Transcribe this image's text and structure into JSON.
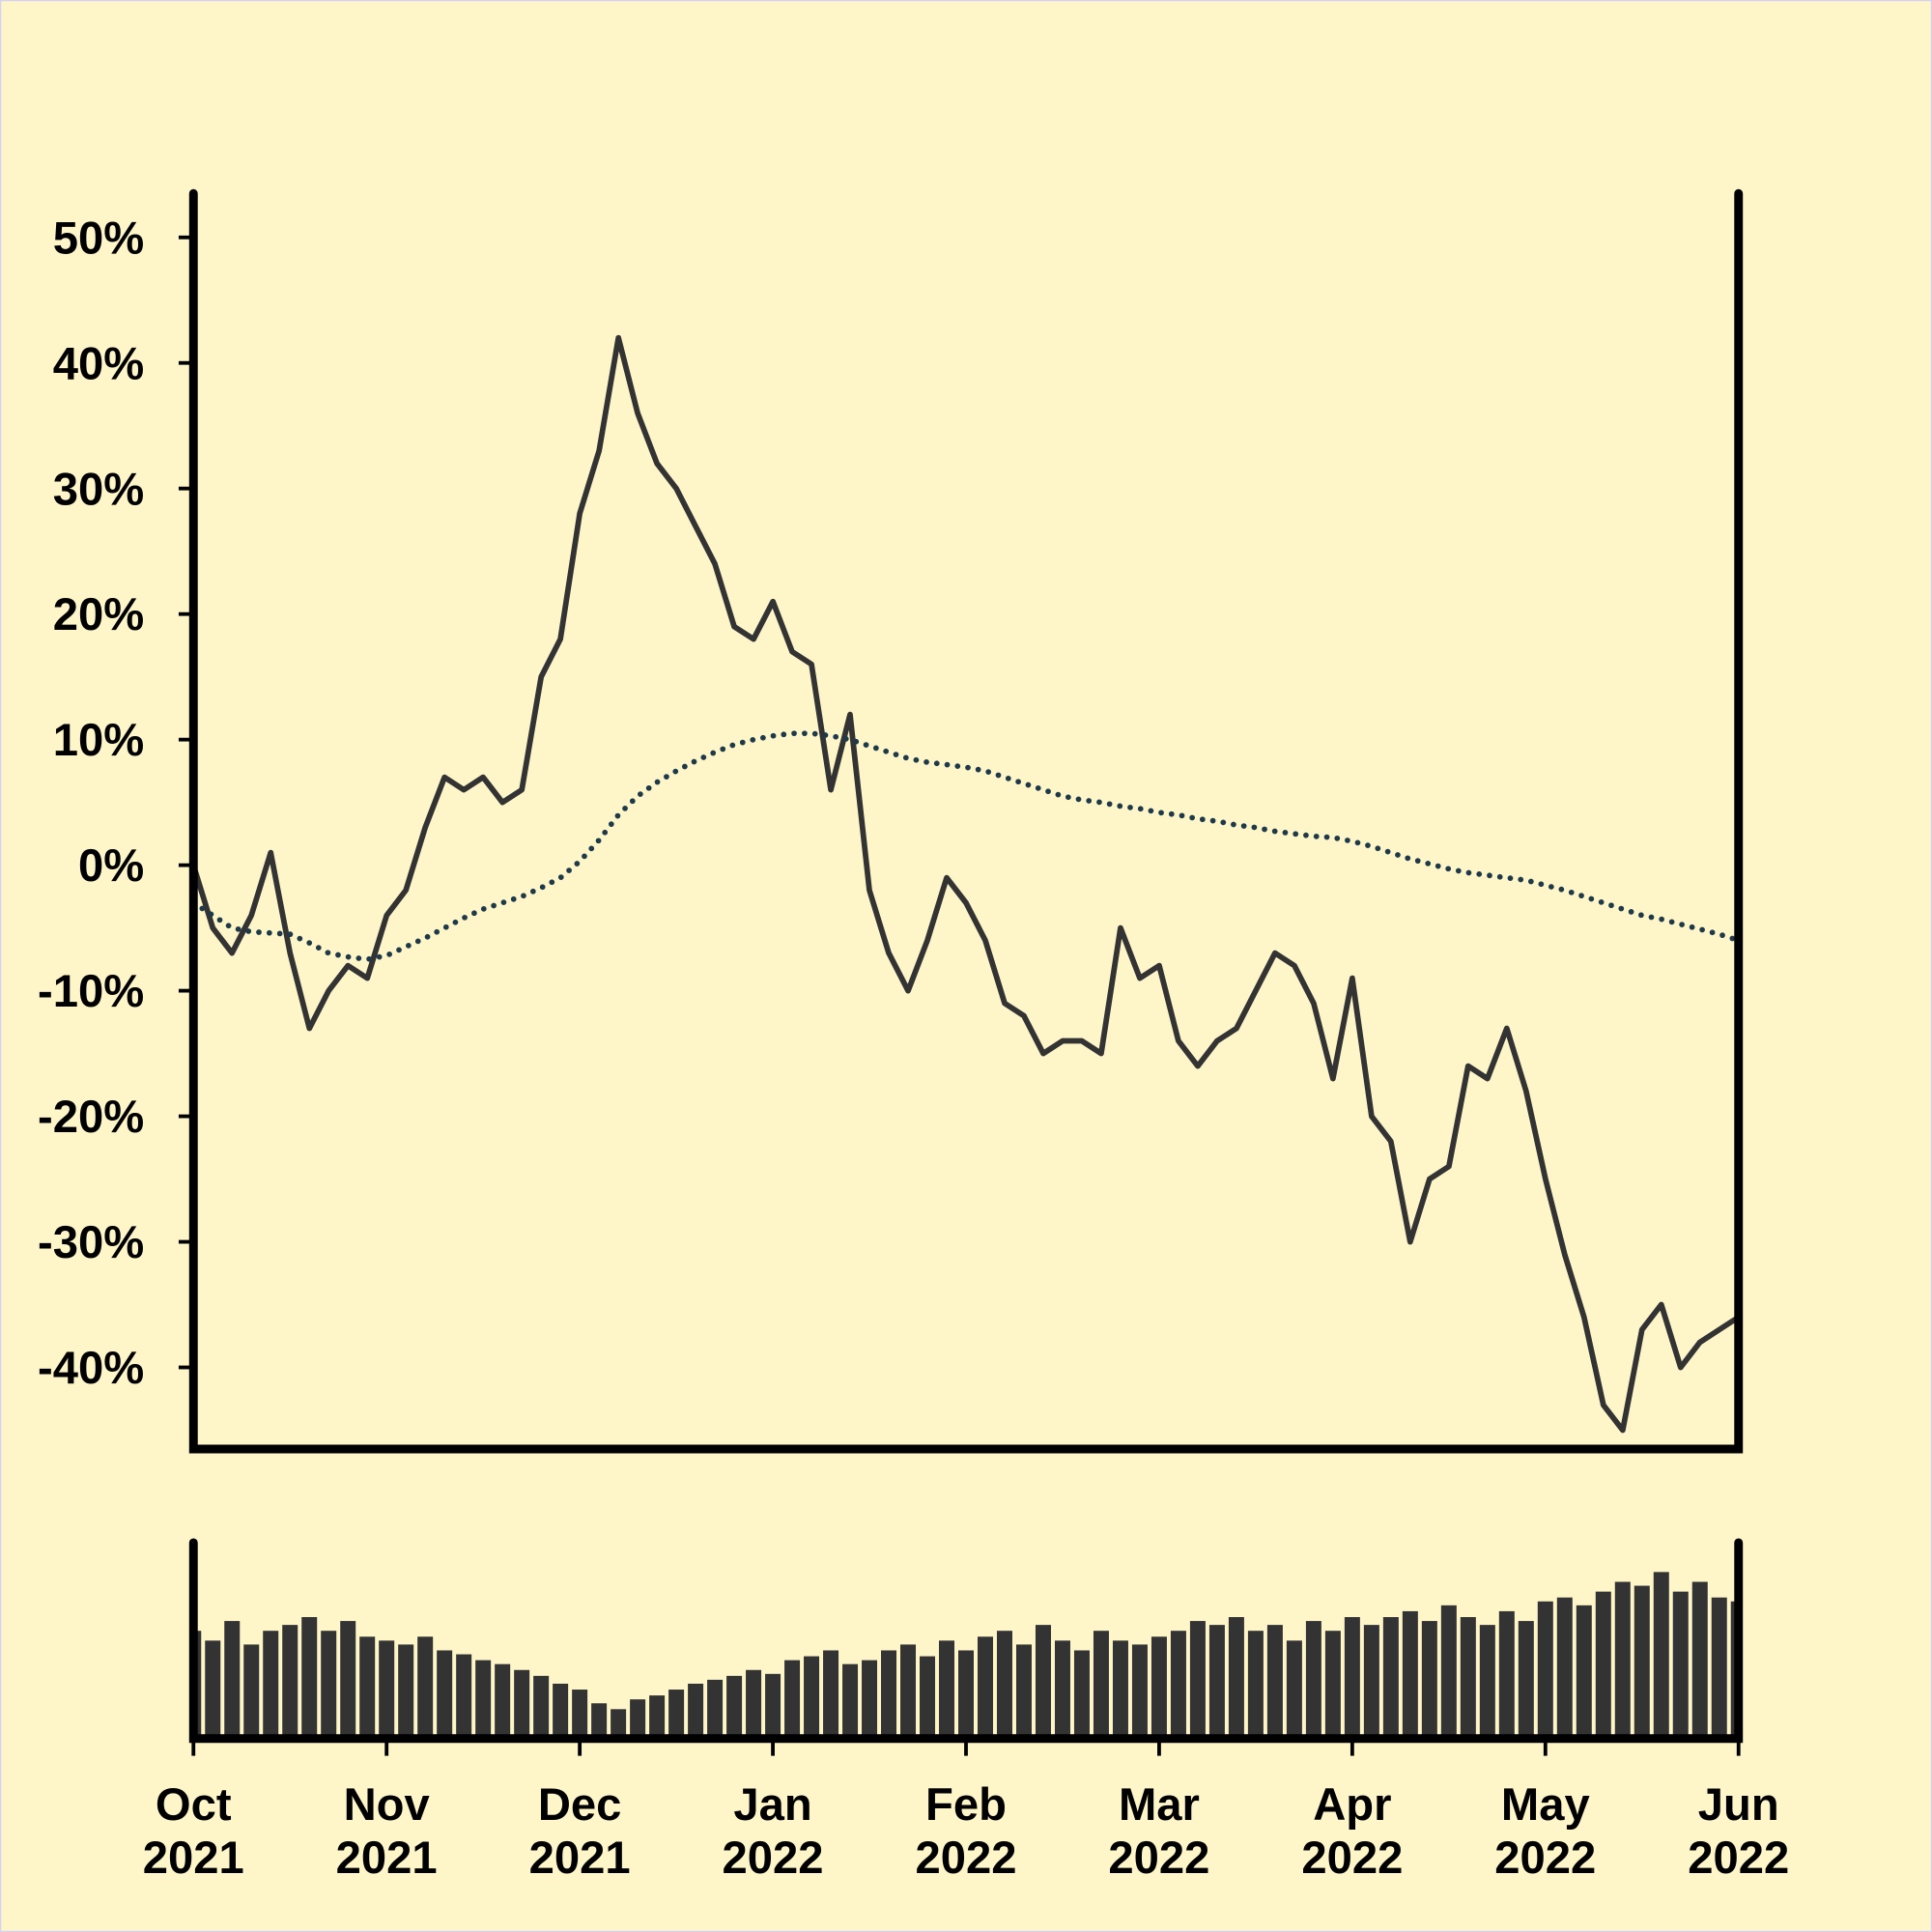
{
  "chart_data": [
    {
      "type": "line",
      "x": [
        0,
        0.1,
        0.2,
        0.3,
        0.4,
        0.5,
        0.6,
        0.7,
        0.8,
        0.9,
        1.0,
        1.1,
        1.2,
        1.3,
        1.4,
        1.5,
        1.6,
        1.7,
        1.8,
        1.9,
        2.0,
        2.1,
        2.2,
        2.3,
        2.4,
        2.5,
        2.6,
        2.7,
        2.8,
        2.9,
        3.0,
        3.1,
        3.2,
        3.3,
        3.4,
        3.5,
        3.6,
        3.7,
        3.8,
        3.9,
        4.0,
        4.1,
        4.2,
        4.3,
        4.4,
        4.5,
        4.6,
        4.7,
        4.8,
        4.9,
        5.0,
        5.1,
        5.2,
        5.3,
        5.4,
        5.5,
        5.6,
        5.7,
        5.8,
        5.9,
        6.0,
        6.1,
        6.2,
        6.3,
        6.4,
        6.5,
        6.6,
        6.7,
        6.8,
        6.9,
        7.0,
        7.1,
        7.2,
        7.3,
        7.4,
        7.5,
        7.6,
        7.7,
        7.8,
        7.9,
        8.0
      ],
      "series": [
        {
          "color": "#333333",
          "style": "solid",
          "values": [
            0,
            -5,
            -7,
            -4,
            1,
            -7,
            -13,
            -10,
            -8,
            -9,
            -4,
            -2,
            3,
            7,
            6,
            7,
            5,
            6,
            15,
            18,
            28,
            33,
            42,
            36,
            32,
            30,
            27,
            24,
            19,
            18,
            21,
            17,
            16,
            6,
            12,
            -2,
            -7,
            -10,
            -6,
            -1,
            -3,
            -6,
            -11,
            -12,
            -15,
            -14,
            -14,
            -15,
            -5,
            -9,
            -8,
            -14,
            -16,
            -14,
            -13,
            -10,
            -7,
            -8,
            -11,
            -17,
            -9,
            -20,
            -22,
            -30,
            -25,
            -24,
            -16,
            -17,
            -13,
            -18,
            -25,
            -31,
            -36,
            -43,
            -45,
            -37,
            -35,
            -40,
            -38,
            -37,
            -36
          ]
        },
        {
          "color": "#1e3a4a",
          "style": "dotted",
          "values": [
            -3,
            -4,
            -5,
            -5.3,
            -5.4,
            -5.5,
            -6.2,
            -7,
            -7.3,
            -7.5,
            -7.2,
            -6.5,
            -5.8,
            -5,
            -4.2,
            -3.5,
            -3,
            -2.5,
            -1.8,
            -1,
            0.3,
            2,
            4,
            5.5,
            6.6,
            7.5,
            8.3,
            9,
            9.6,
            10,
            10.3,
            10.5,
            10.5,
            10.3,
            10,
            9.5,
            9,
            8.5,
            8.2,
            8,
            7.8,
            7.5,
            7,
            6.5,
            6,
            5.5,
            5.2,
            5,
            4.7,
            4.5,
            4.2,
            4,
            3.7,
            3.5,
            3.2,
            3,
            2.7,
            2.5,
            2.3,
            2.2,
            1.9,
            1.5,
            1,
            0.5,
            0.1,
            -0.3,
            -0.6,
            -0.8,
            -1,
            -1.2,
            -1.6,
            -2,
            -2.5,
            -3,
            -3.5,
            -4,
            -4.3,
            -4.7,
            -5.1,
            -5.5,
            -6
          ]
        }
      ],
      "xlim": [
        0,
        8
      ],
      "ylim": [
        -46.5,
        53.5
      ],
      "yticks": [
        {
          "value": 50,
          "label": "50%"
        },
        {
          "value": 40,
          "label": "40%"
        },
        {
          "value": 30,
          "label": "30%"
        },
        {
          "value": 20,
          "label": "20%"
        },
        {
          "value": 10,
          "label": "10%"
        },
        {
          "value": 0,
          "label": "0%"
        },
        {
          "value": -10,
          "label": "-10%"
        },
        {
          "value": -20,
          "label": "-20%"
        },
        {
          "value": -30,
          "label": "-30%"
        },
        {
          "value": -40,
          "label": "-40%"
        }
      ]
    },
    {
      "type": "bar",
      "color": "#333333",
      "x": [
        0,
        0.1,
        0.2,
        0.3,
        0.4,
        0.5,
        0.6,
        0.7,
        0.8,
        0.9,
        1.0,
        1.1,
        1.2,
        1.3,
        1.4,
        1.5,
        1.6,
        1.7,
        1.8,
        1.9,
        2.0,
        2.1,
        2.2,
        2.3,
        2.4,
        2.5,
        2.6,
        2.7,
        2.8,
        2.9,
        3.0,
        3.1,
        3.2,
        3.3,
        3.4,
        3.5,
        3.6,
        3.7,
        3.8,
        3.9,
        4.0,
        4.1,
        4.2,
        4.3,
        4.4,
        4.5,
        4.6,
        4.7,
        4.8,
        4.9,
        5.0,
        5.1,
        5.2,
        5.3,
        5.4,
        5.5,
        5.6,
        5.7,
        5.8,
        5.9,
        6.0,
        6.1,
        6.2,
        6.3,
        6.4,
        6.5,
        6.6,
        6.7,
        6.8,
        6.9,
        7.0,
        7.1,
        7.2,
        7.3,
        7.4,
        7.5,
        7.6,
        7.7,
        7.8,
        7.9,
        8.0
      ],
      "values": [
        55,
        50,
        60,
        48,
        55,
        58,
        62,
        55,
        60,
        52,
        50,
        48,
        52,
        45,
        43,
        40,
        38,
        35,
        32,
        28,
        25,
        18,
        15,
        20,
        22,
        25,
        28,
        30,
        32,
        35,
        33,
        40,
        42,
        45,
        38,
        40,
        45,
        48,
        42,
        50,
        45,
        52,
        55,
        48,
        58,
        50,
        45,
        55,
        50,
        48,
        52,
        55,
        60,
        58,
        62,
        55,
        58,
        50,
        60,
        55,
        62,
        58,
        62,
        65,
        60,
        68,
        62,
        58,
        65,
        60,
        70,
        72,
        68,
        75,
        80,
        78,
        85,
        75,
        80,
        72,
        70
      ],
      "xlim": [
        0,
        8
      ],
      "ylim": [
        0,
        100
      ],
      "xticks": [
        {
          "value": 0,
          "label": "Oct 2021"
        },
        {
          "value": 1,
          "label": "Nov 2021"
        },
        {
          "value": 2,
          "label": "Dec 2021"
        },
        {
          "value": 3,
          "label": "Jan 2022"
        },
        {
          "value": 4,
          "label": "Feb 2022"
        },
        {
          "value": 5,
          "label": "Mar 2022"
        },
        {
          "value": 6,
          "label": "Apr 2022"
        },
        {
          "value": 7,
          "label": "May 2022"
        },
        {
          "value": 8,
          "label": "Jun 2022"
        }
      ]
    }
  ]
}
